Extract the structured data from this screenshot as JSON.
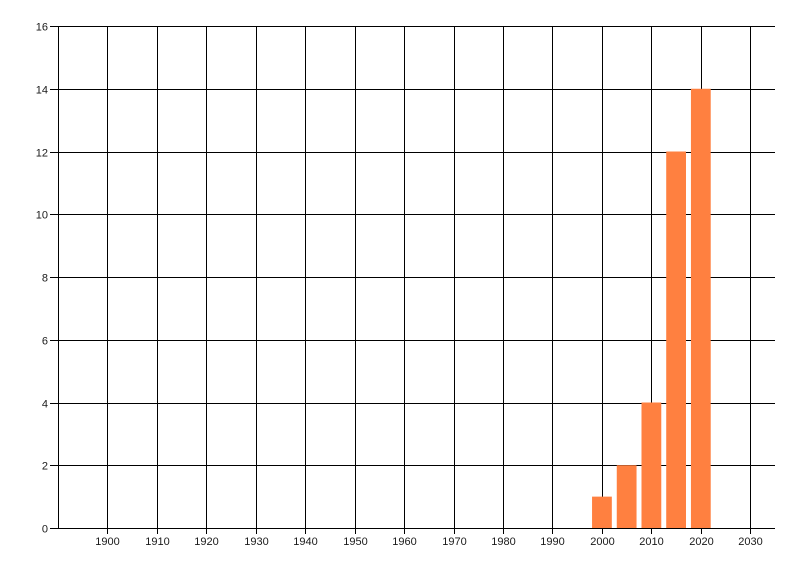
{
  "chart_data": {
    "type": "bar",
    "title": "",
    "xlabel": "",
    "ylabel": "",
    "x": [
      2000,
      2005,
      2010,
      2015,
      2020
    ],
    "values": [
      1,
      2,
      4,
      12,
      14
    ],
    "xlim": [
      1890,
      2035
    ],
    "ylim": [
      0,
      16
    ],
    "x_ticks": [
      1900,
      1910,
      1920,
      1930,
      1940,
      1950,
      1960,
      1970,
      1980,
      1990,
      2000,
      2010,
      2020,
      2030
    ],
    "y_ticks": [
      0,
      2,
      4,
      6,
      8,
      10,
      12,
      14,
      16
    ],
    "bar_width_years": 4,
    "grid": true,
    "bar_color": "#FF8040",
    "grid_color": "#000000"
  }
}
